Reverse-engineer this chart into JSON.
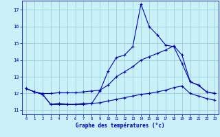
{
  "hours": [
    0,
    1,
    2,
    3,
    4,
    5,
    6,
    7,
    8,
    9,
    10,
    11,
    12,
    13,
    14,
    15,
    16,
    17,
    18,
    19,
    20,
    21,
    22,
    23
  ],
  "temp_actual": [
    12.3,
    12.1,
    11.95,
    11.35,
    11.4,
    11.35,
    11.35,
    11.4,
    11.4,
    12.15,
    13.35,
    14.15,
    14.3,
    14.8,
    17.35,
    16.0,
    15.5,
    14.9,
    14.8,
    13.8,
    12.7,
    12.5,
    12.1,
    12.0
  ],
  "temp_max": [
    12.3,
    12.1,
    12.0,
    12.0,
    12.05,
    12.05,
    12.05,
    12.1,
    12.15,
    12.2,
    12.5,
    13.0,
    13.3,
    13.6,
    14.0,
    14.2,
    14.4,
    14.6,
    14.85,
    14.3,
    12.7,
    12.5,
    12.1,
    12.0
  ],
  "temp_min": [
    12.3,
    12.1,
    11.95,
    11.35,
    11.35,
    11.35,
    11.35,
    11.35,
    11.4,
    11.45,
    11.55,
    11.65,
    11.75,
    11.85,
    11.95,
    12.0,
    12.1,
    12.2,
    12.35,
    12.45,
    12.0,
    11.85,
    11.7,
    11.6
  ],
  "ylim": [
    10.75,
    17.55
  ],
  "yticks": [
    11,
    12,
    13,
    14,
    15,
    16,
    17
  ],
  "xlabel": "Graphe des températures (°c)",
  "bg_color": "#caf0f8",
  "grid_color": "#90c8d8",
  "line_color": "#0000bb",
  "tick_color": "#0000bb",
  "xlabel_color": "#0000bb"
}
